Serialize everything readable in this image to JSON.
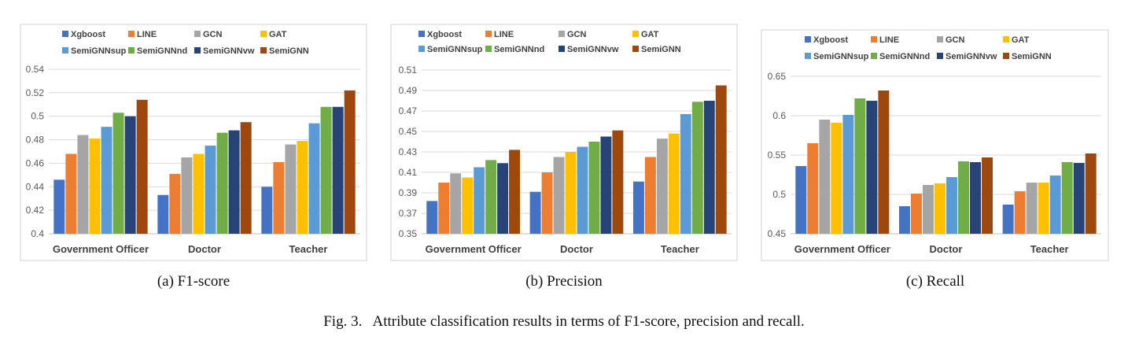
{
  "figure_caption": "Fig. 3.   Attribute classification results in terms of F1-score, precision and recall.",
  "series_colors": [
    "#4472C4",
    "#ED7D31",
    "#A5A5A5",
    "#FFC000",
    "#5B9BD5",
    "#70AD47",
    "#264478",
    "#9E480E"
  ],
  "chart_data": [
    {
      "type": "bar",
      "caption": "(a)  F1-score",
      "categories": [
        "Government Officer",
        "Doctor",
        "Teacher"
      ],
      "ylim": [
        0.4,
        0.54
      ],
      "yticks": [
        0.4,
        0.42,
        0.44,
        0.46,
        0.48,
        0.5,
        0.52,
        0.54
      ],
      "ytick_labels": [
        "0.4",
        "0.42",
        "0.44",
        "0.46",
        "0.48",
        "0.5",
        "0.52",
        "0.54"
      ],
      "grid": true,
      "legend_position": "top",
      "series": [
        {
          "name": "Xgboost",
          "values": [
            0.446,
            0.433,
            0.44
          ]
        },
        {
          "name": "LINE",
          "values": [
            0.468,
            0.451,
            0.461
          ]
        },
        {
          "name": "GCN",
          "values": [
            0.484,
            0.465,
            0.476
          ]
        },
        {
          "name": "GAT",
          "values": [
            0.481,
            0.468,
            0.479
          ]
        },
        {
          "name": "SemiGNNsup",
          "values": [
            0.491,
            0.475,
            0.494
          ]
        },
        {
          "name": "SemiGNNnd",
          "values": [
            0.503,
            0.486,
            0.508
          ]
        },
        {
          "name": "SemiGNNvw",
          "values": [
            0.5,
            0.488,
            0.508
          ]
        },
        {
          "name": "SemiGNN",
          "values": [
            0.514,
            0.495,
            0.522
          ]
        }
      ]
    },
    {
      "type": "bar",
      "caption": "(b)  Precision",
      "categories": [
        "Government Officer",
        "Doctor",
        "Teacher"
      ],
      "ylim": [
        0.35,
        0.51
      ],
      "yticks": [
        0.35,
        0.37,
        0.39,
        0.41,
        0.43,
        0.45,
        0.47,
        0.49,
        0.51
      ],
      "ytick_labels": [
        "0.35",
        "0.37",
        "0.39",
        "0.41",
        "0.43",
        "0.45",
        "0.47",
        "0.49",
        "0.51"
      ],
      "grid": true,
      "legend_position": "top",
      "series": [
        {
          "name": "Xgboost",
          "values": [
            0.382,
            0.391,
            0.401
          ]
        },
        {
          "name": "LINE",
          "values": [
            0.4,
            0.41,
            0.425
          ]
        },
        {
          "name": "GCN",
          "values": [
            0.409,
            0.425,
            0.443
          ]
        },
        {
          "name": "GAT",
          "values": [
            0.405,
            0.43,
            0.448
          ]
        },
        {
          "name": "SemiGNNsup",
          "values": [
            0.415,
            0.435,
            0.467
          ]
        },
        {
          "name": "SemiGNNnd",
          "values": [
            0.422,
            0.44,
            0.479
          ]
        },
        {
          "name": "SemiGNNvw",
          "values": [
            0.419,
            0.445,
            0.48
          ]
        },
        {
          "name": "SemiGNN",
          "values": [
            0.432,
            0.451,
            0.495
          ]
        }
      ]
    },
    {
      "type": "bar",
      "caption": "(c)  Recall",
      "categories": [
        "Government Officer",
        "Doctor",
        "Teacher"
      ],
      "ylim": [
        0.45,
        0.65
      ],
      "yticks": [
        0.45,
        0.5,
        0.55,
        0.6,
        0.65
      ],
      "ytick_labels": [
        "0.45",
        "0.5",
        "0.55",
        "0.6",
        "0.65"
      ],
      "grid": true,
      "legend_position": "top",
      "series": [
        {
          "name": "Xgboost",
          "values": [
            0.536,
            0.485,
            0.487
          ]
        },
        {
          "name": "LINE",
          "values": [
            0.565,
            0.501,
            0.504
          ]
        },
        {
          "name": "GCN",
          "values": [
            0.595,
            0.512,
            0.515
          ]
        },
        {
          "name": "GAT",
          "values": [
            0.591,
            0.514,
            0.515
          ]
        },
        {
          "name": "SemiGNNsup",
          "values": [
            0.601,
            0.522,
            0.524
          ]
        },
        {
          "name": "SemiGNNnd",
          "values": [
            0.622,
            0.542,
            0.541
          ]
        },
        {
          "name": "SemiGNNvw",
          "values": [
            0.619,
            0.541,
            0.54
          ]
        },
        {
          "name": "SemiGNN",
          "values": [
            0.632,
            0.547,
            0.552
          ]
        }
      ]
    }
  ]
}
